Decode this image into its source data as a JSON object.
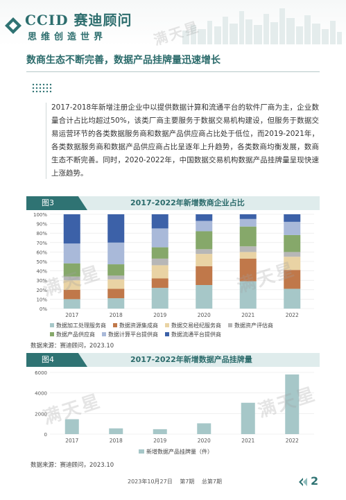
{
  "header": {
    "brand_en": "CCID",
    "brand_cn": "赛迪顾问",
    "slogan": "思维创造世界"
  },
  "section": {
    "title": "数商生态不断完善，数据产品挂牌量迅速增长",
    "paragraph": "2017-2018年新增注册企业中以提供数据计算和流通平台的软件厂商为主，企业数量合计占比均超过50%，该类厂商主要服务于数据交易机构建设，但服务于数据交易运营环节的各类数据服务商和数据产品供应商占比处于低位，而2019-2021年，各类数据服务商和数据产品供应商占比呈逐年上升趋势，各类数商均衡发展，数商生态不断完善。同时，2020-2022年，中国数据交易机构数据产品挂牌量呈现快速上涨趋势。"
  },
  "figure3": {
    "tag": "图3",
    "title": "2017-2022年新增数商企业占比",
    "source": "数据来源：赛迪顾问，2023.10"
  },
  "figure4": {
    "tag": "图4",
    "title": "2017-2022年新增数据产品挂牌量",
    "source": "数据来源：赛迪顾问，2023.10"
  },
  "watermark_text": "满天星",
  "footer": {
    "date": "2023年10月27日",
    "issue": "第7期",
    "total": "总第7期",
    "page": "2"
  },
  "colors": {
    "accent": "#2f7373",
    "series": [
      "#a6c7c8",
      "#c0784a",
      "#e9d3a4",
      "#b7b7b7",
      "#86a86a",
      "#a9b9d9",
      "#3c61a8"
    ]
  },
  "chart_data": [
    {
      "type": "bar",
      "stacked": true,
      "categories": [
        "2017",
        "2018",
        "2019",
        "2020",
        "2021",
        "2022"
      ],
      "ylim": [
        0,
        100
      ],
      "yticks": [
        "0%",
        "10%",
        "20%",
        "30%",
        "40%",
        "50%",
        "60%",
        "70%",
        "80%",
        "90%",
        "100%"
      ],
      "series": [
        {
          "name": "数据加工处理服务商",
          "values": [
            10,
            11,
            22,
            25,
            29,
            21
          ]
        },
        {
          "name": "数据资源集成商",
          "values": [
            10,
            10,
            10,
            20,
            24,
            20
          ]
        },
        {
          "name": "数据交易经纪服务商",
          "values": [
            10,
            10,
            14,
            13,
            7,
            14
          ]
        },
        {
          "name": "数据资产评估商",
          "values": [
            4,
            4,
            7,
            5,
            6,
            5
          ]
        },
        {
          "name": "数据产品供应商",
          "values": [
            14,
            12,
            12,
            19,
            21,
            18
          ]
        },
        {
          "name": "数据计算平台提供商",
          "values": [
            21,
            23,
            20,
            11,
            8,
            14
          ]
        },
        {
          "name": "数据流通平台提供商",
          "values": [
            31,
            30,
            15,
            7,
            5,
            8
          ]
        }
      ]
    },
    {
      "type": "bar",
      "categories": [
        "2017",
        "2018",
        "2019",
        "2020",
        "2021",
        "2022"
      ],
      "ylim": [
        0,
        6000
      ],
      "yticks": [
        "0",
        "2000",
        "4000",
        "6000"
      ],
      "series": [
        {
          "name": "新增数据产品挂牌量（件）",
          "values": [
            1450,
            560,
            480,
            1050,
            3050,
            5800
          ]
        }
      ]
    }
  ]
}
